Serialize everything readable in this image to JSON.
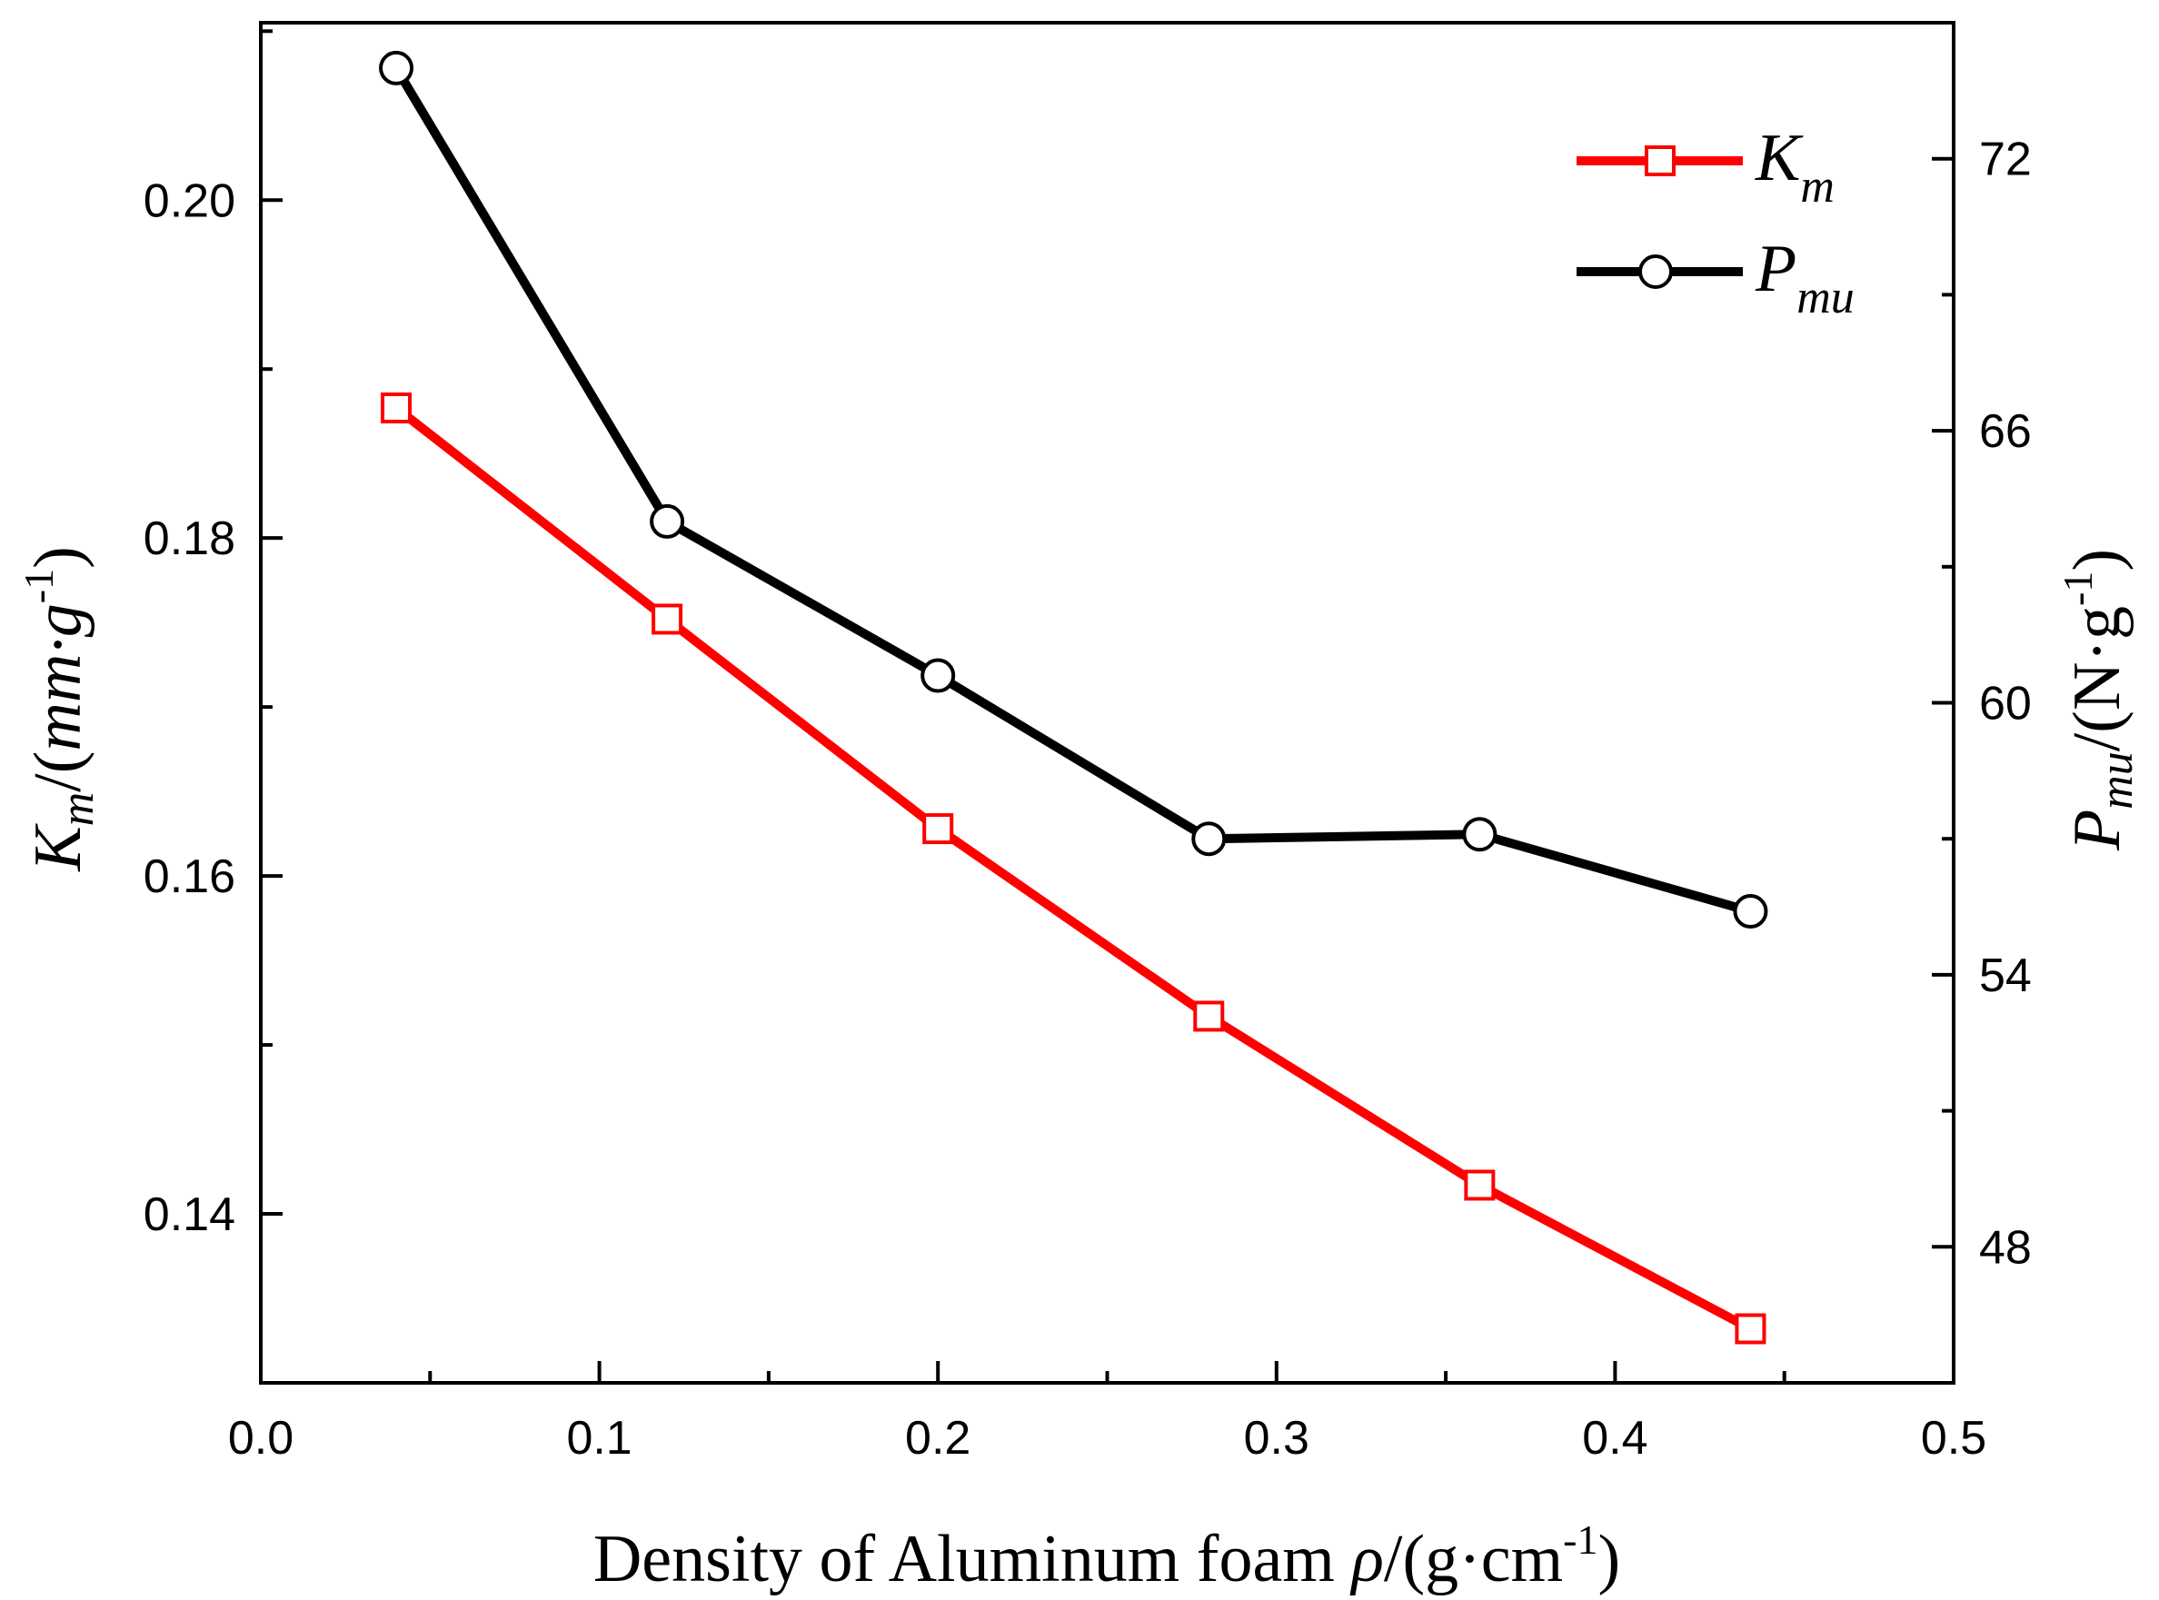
{
  "chart_data": {
    "type": "line",
    "title": "",
    "xlabel": {
      "text": "Density of Aluminum foam ",
      "symbol": "ρ",
      "unit_open": "/(g·cm",
      "unit_exp": "-1",
      "unit_close": ")"
    },
    "ylabel_left": {
      "symbol": "K",
      "sub": "m",
      "unit_open": "/(",
      "unit_ital": "mm·g",
      "unit_exp": "-1",
      "unit_close": ")"
    },
    "ylabel_right": {
      "symbol": "P",
      "sub": "mu",
      "unit_open": "/(N·g",
      "unit_exp": "-1",
      "unit_close": ")"
    },
    "xlim": [
      0.0,
      0.5
    ],
    "ylim_left": [
      0.13,
      0.2105
    ],
    "ylim_right": [
      45.0,
      75.0
    ],
    "xticks": [
      "0.0",
      "0.1",
      "0.2",
      "0.3",
      "0.4",
      "0.5"
    ],
    "yticks_left": [
      "0.14",
      "0.16",
      "0.18",
      "0.20"
    ],
    "yticks_right": [
      "48",
      "54",
      "60",
      "66",
      "72"
    ],
    "series": [
      {
        "name": "Km",
        "legend_symbol": "K",
        "legend_sub": "m",
        "axis": "left",
        "color": "#ff0000",
        "marker": "square",
        "x": [
          0.04,
          0.12,
          0.2,
          0.28,
          0.36,
          0.44
        ],
        "values": [
          0.1877,
          0.1752,
          0.1628,
          0.1517,
          0.1417,
          0.1332
        ]
      },
      {
        "name": "Pmu",
        "legend_symbol": "P",
        "legend_sub": "mu",
        "axis": "right",
        "color": "#000000",
        "marker": "circle",
        "x": [
          0.04,
          0.12,
          0.2,
          0.28,
          0.36,
          0.44
        ],
        "values": [
          74.0,
          64.0,
          60.6,
          57.0,
          57.1,
          55.4
        ]
      }
    ],
    "legend_position": "top-right",
    "grid": false
  }
}
